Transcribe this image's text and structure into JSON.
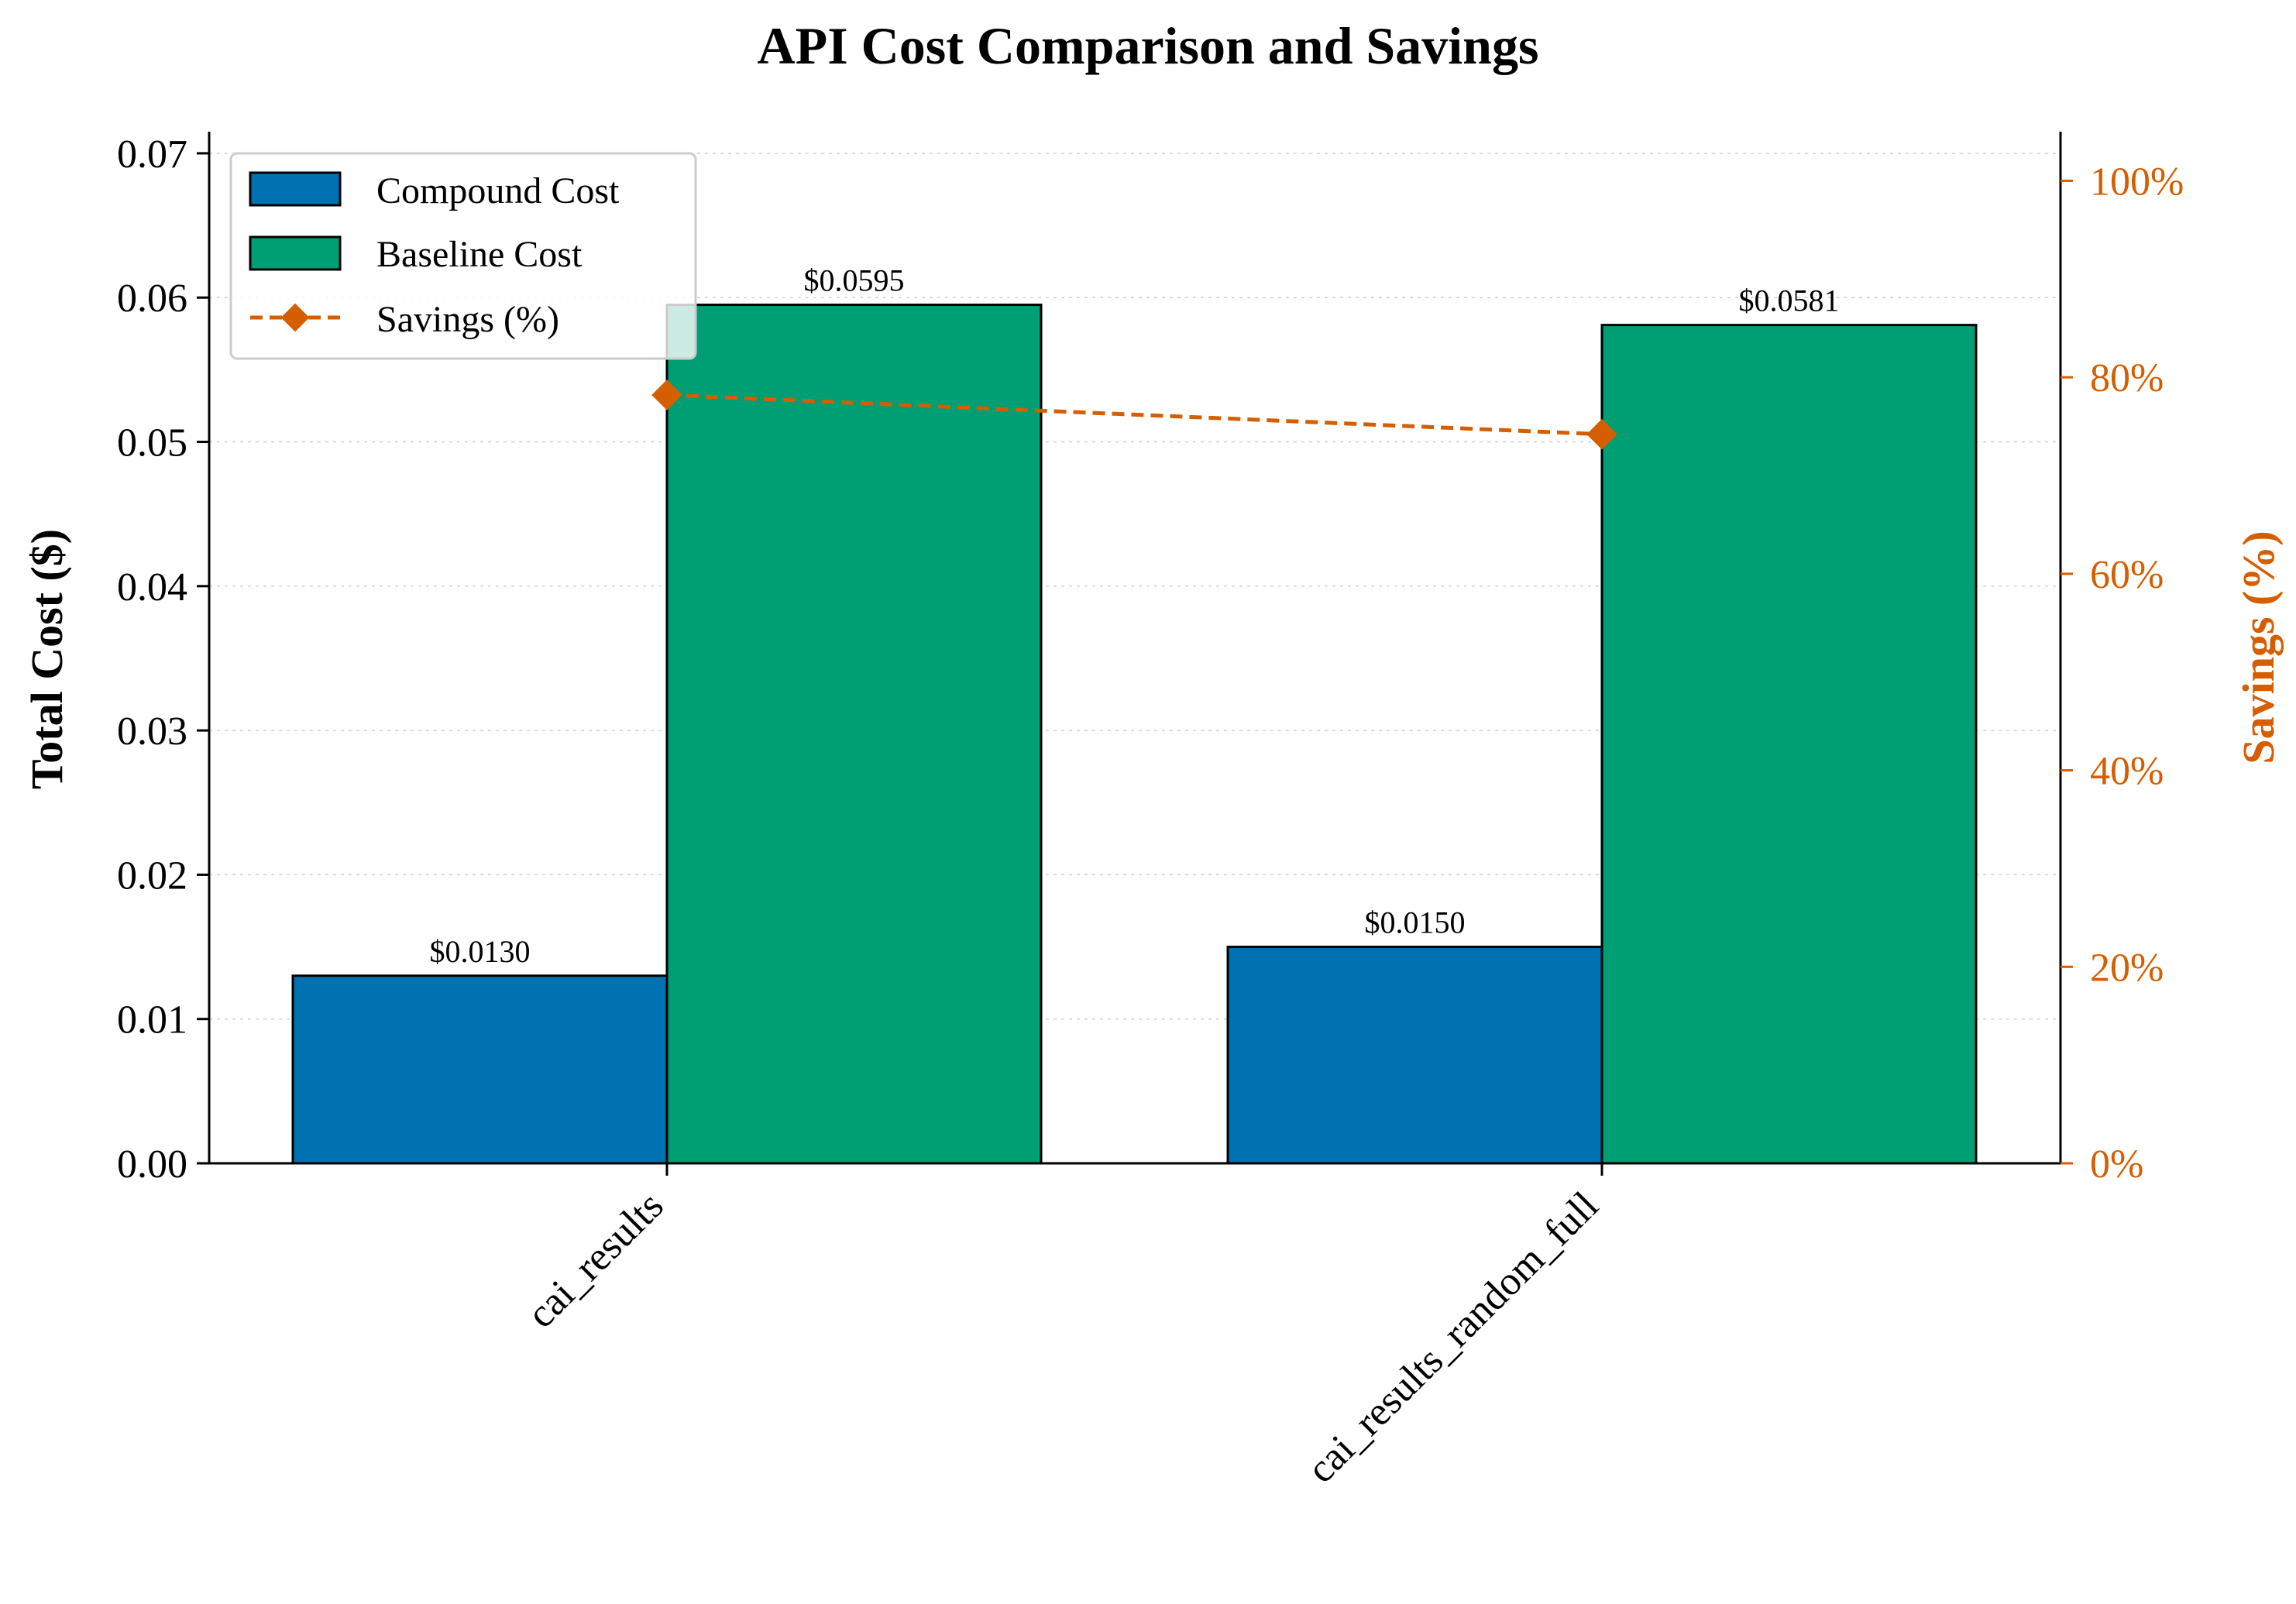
{
  "chart_data": {
    "type": "bar",
    "title": "API Cost Comparison and Savings",
    "categories": [
      "cai_results",
      "cai_results_random_full"
    ],
    "series": [
      {
        "name": "Compound Cost",
        "values": [
          0.013,
          0.015
        ],
        "labels": [
          "$0.0130",
          "$0.0150"
        ],
        "color": "#0072b2"
      },
      {
        "name": "Baseline Cost",
        "values": [
          0.0595,
          0.0581
        ],
        "labels": [
          "$0.0595",
          "$0.0581"
        ],
        "color": "#009e73"
      }
    ],
    "line_series": {
      "name": "Savings (%)",
      "values": [
        78.2,
        74.2
      ],
      "color": "#d55e00",
      "style": "dashed",
      "marker": "diamond",
      "axis": "right"
    },
    "ylabel": "Total Cost ($)",
    "y2label": "Savings (%)",
    "ylim": [
      0,
      0.0715
    ],
    "y2lim": [
      0,
      105
    ],
    "yticks": [
      "0.00",
      "0.01",
      "0.02",
      "0.03",
      "0.04",
      "0.05",
      "0.06",
      "0.07"
    ],
    "y2ticks": [
      "0%",
      "20%",
      "40%",
      "60%",
      "80%",
      "100%"
    ],
    "grid": true,
    "legend": "top-left"
  }
}
